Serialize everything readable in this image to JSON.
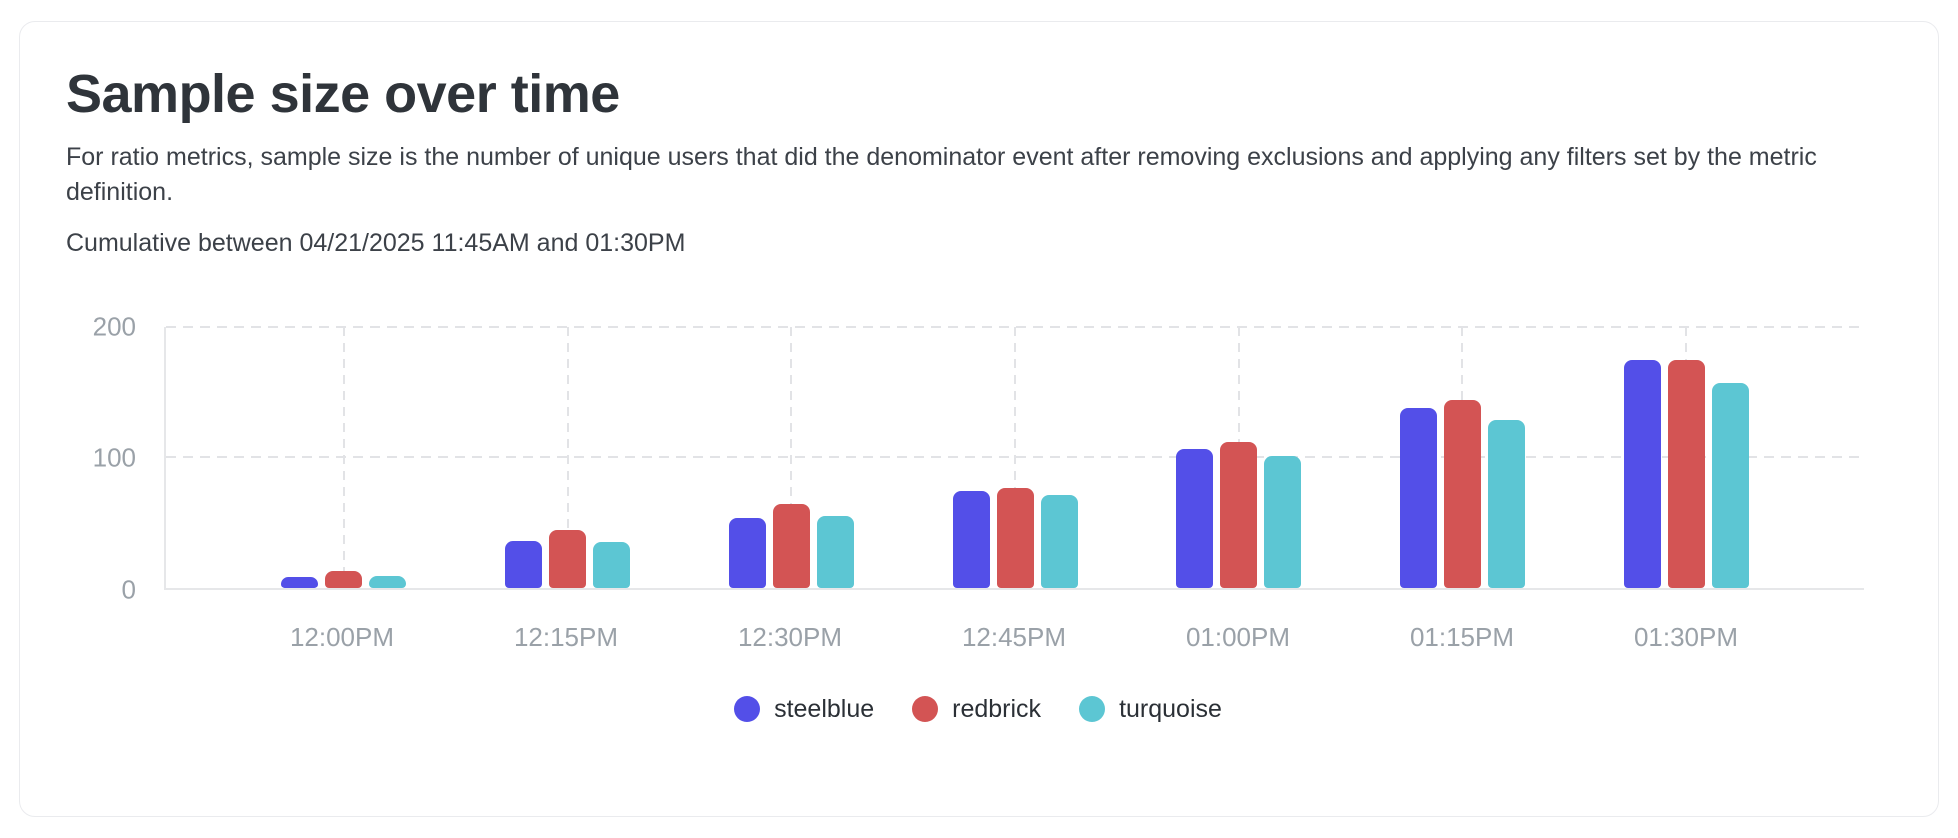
{
  "card": {
    "title": "Sample size over time",
    "description": "For ratio metrics, sample size is the number of unique users that did the denominator event after removing exclusions and applying any filters set by the metric definition.",
    "subtitle": "Cumulative between 04/21/2025 11:45AM and 01:30PM"
  },
  "chart_data": {
    "type": "bar",
    "title": "Sample size over time",
    "categories": [
      "12:00PM",
      "12:15PM",
      "12:30PM",
      "12:45PM",
      "01:00PM",
      "01:15PM",
      "01:30PM"
    ],
    "series": [
      {
        "name": "steelblue",
        "color": "#534FE8",
        "values": [
          8,
          36,
          53,
          74,
          106,
          137,
          173
        ]
      },
      {
        "name": "redbrick",
        "color": "#D35454",
        "values": [
          13,
          44,
          64,
          76,
          111,
          143,
          173
        ]
      },
      {
        "name": "turquoise",
        "color": "#5CC6D3",
        "values": [
          9,
          35,
          55,
          71,
          100,
          128,
          156
        ]
      }
    ],
    "xlabel": "",
    "ylabel": "",
    "ylim": [
      0,
      200
    ],
    "yticks": [
      200,
      100,
      0
    ],
    "grid": "dashed horizontal at 100 and 200, dashed vertical at each category center",
    "legend_position": "bottom-center"
  },
  "colors": {
    "background": "#FFFFFF",
    "card_border": "#EAEBEE",
    "axis_line": "#E6E7E9",
    "gridline": "#E2E3E6",
    "axis_label_text": "#9AA1A8",
    "title_text": "#2F343A",
    "body_text": "#3C4148",
    "legend_text": "#2B3036"
  }
}
